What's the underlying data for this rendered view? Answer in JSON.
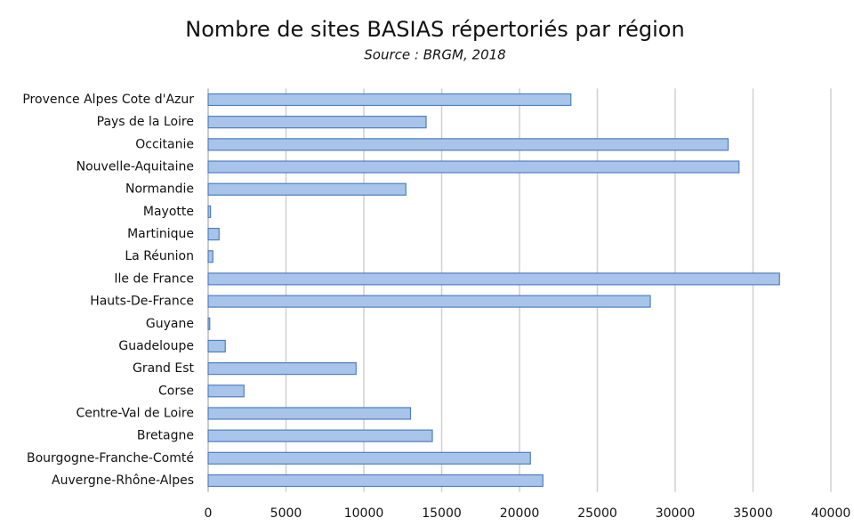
{
  "chart_data": {
    "type": "bar",
    "orientation": "horizontal",
    "title": "Nombre de sites BASIAS répertoriés par région",
    "subtitle": "Source : BRGM, 2018",
    "categories": [
      "Provence Alpes Cote d'Azur",
      "Pays de la Loire",
      "Occitanie",
      "Nouvelle-Aquitaine",
      "Normandie",
      "Mayotte",
      "Martinique",
      "La Réunion",
      "Ile de France",
      "Hauts-De-France",
      "Guyane",
      "Guadeloupe",
      "Grand Est",
      "Corse",
      "Centre-Val de Loire",
      "Bretagne",
      "Bourgogne-Franche-Comté",
      "Auvergne-Rhône-Alpes"
    ],
    "values": [
      23300,
      14000,
      33400,
      34100,
      12700,
      150,
      700,
      300,
      36700,
      28400,
      100,
      1100,
      9500,
      2300,
      13000,
      14400,
      20700,
      21500
    ],
    "color": "#a9c4ea",
    "xlim": [
      0,
      40000
    ],
    "xticks": [
      0,
      5000,
      10000,
      15000,
      20000,
      25000,
      30000,
      35000,
      40000
    ],
    "grid": true
  }
}
